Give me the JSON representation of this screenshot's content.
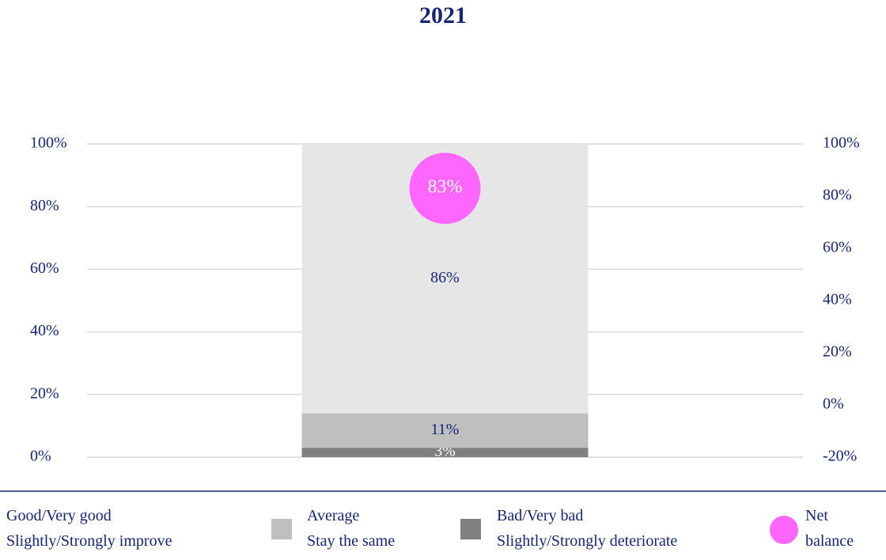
{
  "chart_data": {
    "type": "bar",
    "title": "2021",
    "categories": [
      null
    ],
    "series": [
      {
        "name": "Good/Very good\nSlightly/Strongly improve",
        "color": "#e6e6e6",
        "values": [
          86
        ],
        "value_labels": [
          "86%"
        ],
        "label_color": "#14267a"
      },
      {
        "name": "Average\nStay the same",
        "color": "#bfbfbf",
        "values": [
          11
        ],
        "value_labels": [
          "11%"
        ],
        "label_color": "#14267a"
      },
      {
        "name": "Bad/Very bad\nSlightly/Strongly deteriorate",
        "color": "#808080",
        "values": [
          3
        ],
        "value_labels": [
          "3%"
        ],
        "label_color": "#ffffff"
      },
      {
        "name": "Net\nbalance",
        "color": "#ff66ff",
        "values": [
          83
        ],
        "value_labels": [
          "83%"
        ],
        "label_color": "#ffffff",
        "axis": "y2",
        "type": "scatter"
      }
    ],
    "stacked": true,
    "ylim": [
      0,
      100
    ],
    "yticks": [
      {
        "value": 0,
        "label": "0%"
      },
      {
        "value": 20,
        "label": "20%"
      },
      {
        "value": 40,
        "label": "40%"
      },
      {
        "value": 60,
        "label": "60%"
      },
      {
        "value": 80,
        "label": "80%"
      },
      {
        "value": 100,
        "label": "100%"
      }
    ],
    "y2lim": [
      -20,
      100
    ],
    "y2ticks": [
      {
        "value": -20,
        "label": "-20%"
      },
      {
        "value": 0,
        "label": "0%"
      },
      {
        "value": 20,
        "label": "20%"
      },
      {
        "value": 40,
        "label": "40%"
      },
      {
        "value": 60,
        "label": "60%"
      },
      {
        "value": 80,
        "label": "80%"
      },
      {
        "value": 100,
        "label": "100%"
      }
    ],
    "grid": true,
    "legend": "bottom"
  }
}
